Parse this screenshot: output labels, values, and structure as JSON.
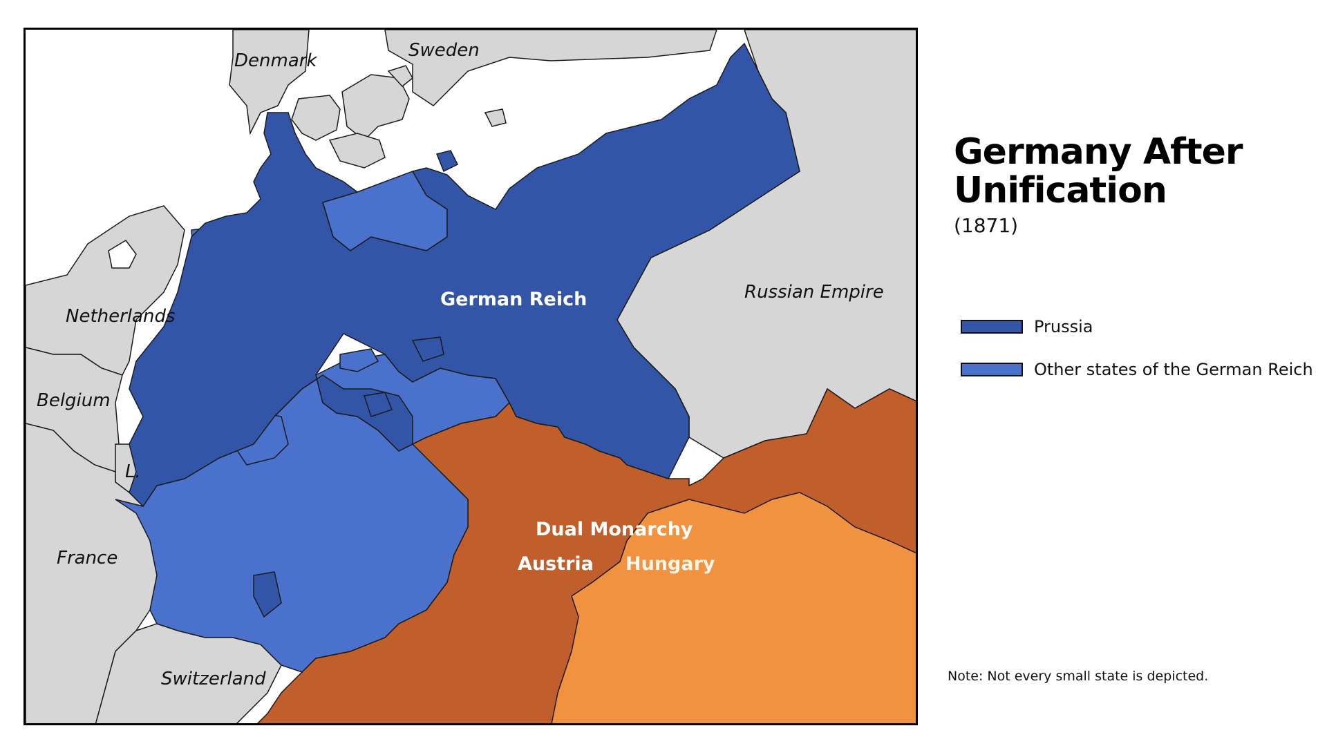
{
  "title": "Germany After Unification",
  "subtitle": "(1871)",
  "legend": [
    {
      "label": "Prussia",
      "color": "#3355a8"
    },
    {
      "label": "Other states of the German Reich",
      "color": "#4a72cc"
    }
  ],
  "note": "Note: Not every small state is depicted.",
  "colors": {
    "prussia": "#3355a8",
    "other_states": "#4a72cc",
    "austria": "#c05e2c",
    "hungary": "#f09240",
    "neighbor_countries": "#d6d6d6",
    "sea": "#ffffff",
    "border": "#1a1a1a"
  },
  "map_labels": {
    "denmark": "Denmark",
    "sweden": "Sweden",
    "netherlands": "Netherlands",
    "belgium": "Belgium",
    "luxembourg": "L.",
    "france": "France",
    "switzerland": "Switzerland",
    "russian_empire": "Russian Empire",
    "german_reich": "German Reich",
    "dual_monarchy": "Dual Monarchy",
    "austria": "Austria",
    "hungary": "Hungary"
  }
}
